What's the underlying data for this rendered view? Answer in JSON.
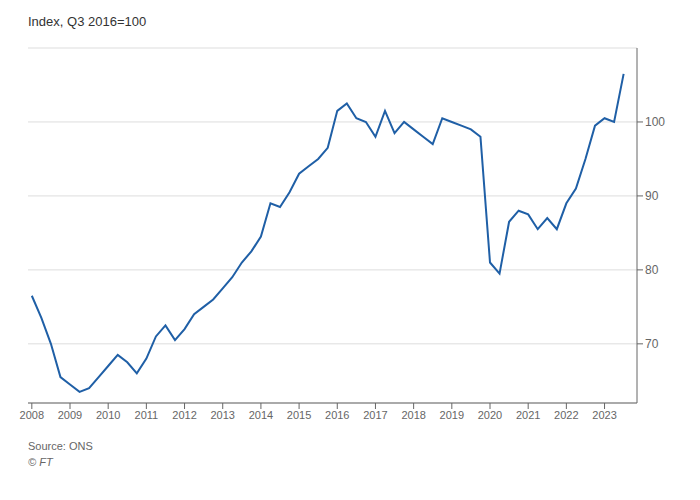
{
  "chart_data": {
    "type": "line",
    "y_label": "Index, Q3 2016=100",
    "annotations": [
      "Source: ONS",
      "© FT"
    ],
    "color": "#1f5fa6",
    "grid": true,
    "xlim": [
      2007.9,
      2023.85
    ],
    "xticks": [
      2008,
      2009,
      2010,
      2011,
      2012,
      2013,
      2014,
      2015,
      2016,
      2017,
      2018,
      2019,
      2020,
      2021,
      2022,
      2023
    ],
    "ylim": [
      62,
      110
    ],
    "yticks": [
      70,
      80,
      90,
      100
    ],
    "x": [
      2008.0,
      2008.25,
      2008.5,
      2008.75,
      2009.0,
      2009.25,
      2009.5,
      2009.75,
      2010.0,
      2010.25,
      2010.5,
      2010.75,
      2011.0,
      2011.25,
      2011.5,
      2011.75,
      2012.0,
      2012.25,
      2012.5,
      2012.75,
      2013.0,
      2013.25,
      2013.5,
      2013.75,
      2014.0,
      2014.25,
      2014.5,
      2014.75,
      2015.0,
      2015.25,
      2015.5,
      2015.75,
      2016.0,
      2016.25,
      2016.5,
      2016.75,
      2017.0,
      2017.25,
      2017.5,
      2017.75,
      2018.0,
      2018.25,
      2018.5,
      2018.75,
      2019.0,
      2019.25,
      2019.5,
      2019.75,
      2020.0,
      2020.25,
      2020.5,
      2020.75,
      2021.0,
      2021.25,
      2021.5,
      2021.75,
      2022.0,
      2022.25,
      2022.5,
      2022.75,
      2023.0,
      2023.25,
      2023.5
    ],
    "values": [
      76.5,
      73.5,
      70.0,
      65.5,
      64.5,
      63.5,
      64.0,
      65.5,
      67.0,
      68.5,
      67.5,
      66.0,
      68.0,
      71.0,
      72.5,
      70.5,
      72.0,
      74.0,
      75.0,
      76.0,
      77.5,
      79.0,
      81.0,
      82.5,
      84.5,
      89.0,
      88.5,
      90.5,
      93.0,
      94.0,
      95.0,
      96.5,
      101.5,
      102.5,
      100.5,
      100.0,
      98.0,
      101.5,
      98.5,
      100.0,
      99.0,
      98.0,
      97.0,
      100.5,
      100.0,
      99.5,
      99.0,
      98.0,
      81.0,
      79.5,
      86.5,
      88.0,
      87.5,
      85.5,
      87.0,
      85.5,
      89.0,
      91.0,
      95.0,
      99.5,
      100.5,
      100.0,
      106.5
    ]
  }
}
